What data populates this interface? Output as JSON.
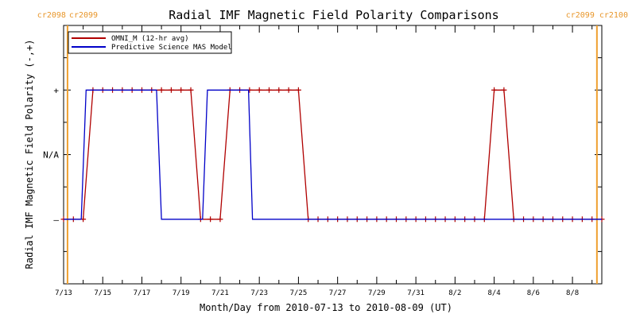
{
  "chart_data": {
    "type": "line",
    "title": "Radial IMF Magnetic Field Polarity Comparisons",
    "xlabel": "Month/Day from 2010-07-13 to 2010-08-09 (UT)",
    "ylabel": "Radial IMF Magnetic Field Polarity (-,+)",
    "x_range_days": [
      0,
      27.5
    ],
    "y_range": [
      -2,
      2
    ],
    "x_ticks": [
      {
        "day": 0,
        "label": "7/13"
      },
      {
        "day": 2,
        "label": "7/15"
      },
      {
        "day": 4,
        "label": "7/17"
      },
      {
        "day": 6,
        "label": "7/19"
      },
      {
        "day": 8,
        "label": "7/21"
      },
      {
        "day": 10,
        "label": "7/23"
      },
      {
        "day": 12,
        "label": "7/25"
      },
      {
        "day": 14,
        "label": "7/27"
      },
      {
        "day": 16,
        "label": "7/29"
      },
      {
        "day": 18,
        "label": "7/31"
      },
      {
        "day": 20,
        "label": "8/2"
      },
      {
        "day": 22,
        "label": "8/4"
      },
      {
        "day": 24,
        "label": "8/6"
      },
      {
        "day": 26,
        "label": "8/8"
      }
    ],
    "y_levels": [
      {
        "value": 1,
        "label": "+"
      },
      {
        "value": 0,
        "label": "N/A"
      },
      {
        "value": -1,
        "label": "–"
      }
    ],
    "carrington_markers": [
      {
        "day": 0.2,
        "left": "cr2098",
        "right": "cr2099"
      },
      {
        "day": 27.25,
        "left": "cr2099",
        "right": "cr2100"
      }
    ],
    "legend": {
      "position": "top-left",
      "entries": [
        {
          "label": "OMNI_M (12-hr avg)",
          "color": "#b00000"
        },
        {
          "label": "Predictive Science MAS Model",
          "color": "#0000c8"
        }
      ]
    },
    "series": [
      {
        "name": "OMNI_M (12-hr avg)",
        "color": "#b00000",
        "marker": "plus",
        "x": [
          0,
          0.5,
          1,
          1.5,
          2,
          2.5,
          3,
          3.5,
          4,
          4.5,
          5,
          5.5,
          6,
          6.5,
          7,
          7.5,
          8,
          8.5,
          9,
          9.5,
          10,
          10.5,
          11,
          11.5,
          12,
          12.5,
          13,
          13.5,
          14,
          14.5,
          15,
          15.5,
          16,
          16.5,
          17,
          17.5,
          18,
          18.5,
          19,
          19.5,
          20,
          20.5,
          21,
          21.5,
          22,
          22.5,
          23,
          23.5,
          24,
          24.5,
          25,
          25.5,
          26,
          26.5,
          27,
          27.5
        ],
        "y": [
          -1,
          -1,
          -1,
          1,
          1,
          1,
          1,
          1,
          1,
          1,
          1,
          1,
          1,
          1,
          -1,
          -1,
          -1,
          1,
          1,
          1,
          1,
          1,
          1,
          1,
          1,
          -1,
          -1,
          -1,
          -1,
          -1,
          -1,
          -1,
          -1,
          -1,
          -1,
          -1,
          -1,
          -1,
          -1,
          -1,
          -1,
          -1,
          -1,
          -1,
          1,
          1,
          -1,
          -1,
          -1,
          -1,
          -1,
          -1,
          -1,
          -1,
          -1,
          -1
        ]
      },
      {
        "name": "Predictive Science MAS Model",
        "color": "#0000c8",
        "marker": "none",
        "x": [
          0,
          0.9,
          1.15,
          4.75,
          5.0,
          7.1,
          7.35,
          9.45,
          9.65,
          27.5
        ],
        "y": [
          -1,
          -1,
          1,
          1,
          -1,
          -1,
          1,
          1,
          -1,
          -1
        ]
      }
    ]
  }
}
